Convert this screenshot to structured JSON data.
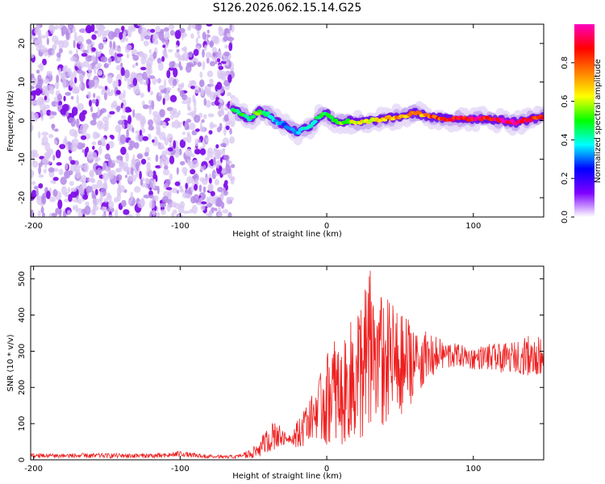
{
  "title": "S126.2026.062.15.14.G25",
  "chart_data": [
    {
      "type": "heatmap",
      "xlabel": "Height of straight line (km)",
      "ylabel": "Frequency (Hz)",
      "xlim": [
        -202,
        148
      ],
      "ylim": [
        -25,
        25
      ],
      "xticks": [
        -200,
        -100,
        0,
        100
      ],
      "yticks": [
        -20,
        -10,
        0,
        10,
        20
      ],
      "noise_region_x": [
        -202,
        -64
      ],
      "ridge": {
        "x": [
          -64,
          -58,
          -52,
          -46,
          -40,
          -35,
          -30,
          -25,
          -20,
          -15,
          -10,
          -5,
          0,
          5,
          10,
          15,
          20,
          30,
          40,
          50,
          60,
          70,
          80,
          90,
          100,
          110,
          120,
          130,
          140,
          148
        ],
        "freq": [
          3,
          1.5,
          0.5,
          2.5,
          1.5,
          0,
          -1,
          -2,
          -3,
          -2,
          -1,
          1,
          2,
          0,
          -0.5,
          0,
          -0.5,
          0,
          0.5,
          1,
          2,
          1,
          0.5,
          0.5,
          0.5,
          0.5,
          0,
          -0.5,
          0.5,
          1
        ],
        "amp": [
          0.45,
          0.5,
          0.45,
          0.55,
          0.4,
          0.35,
          0.3,
          0.3,
          0.35,
          0.4,
          0.45,
          0.45,
          0.5,
          0.5,
          0.55,
          0.6,
          0.6,
          0.65,
          0.7,
          0.75,
          0.75,
          0.8,
          0.85,
          0.9,
          0.9,
          0.92,
          0.95,
          0.95,
          0.9,
          0.85
        ]
      },
      "colorbar": {
        "label": "Normalized spectral amplitude",
        "range": [
          0,
          1
        ],
        "ticks": [
          0.0,
          0.2,
          0.4,
          0.6,
          0.8
        ],
        "tick_labels": [
          "0.0",
          "0.2",
          "0.4",
          "0.6",
          "0.8"
        ],
        "colors": [
          "#ffffff",
          "#7f00ff",
          "#0000ff",
          "#00ffff",
          "#00ff00",
          "#ffff00",
          "#ff7f00",
          "#ff0000",
          "#ff00bf"
        ]
      }
    },
    {
      "type": "line",
      "xlabel": "Height of straight line (km)",
      "ylabel": "SNR (10 * v/v)",
      "xlim": [
        -202,
        148
      ],
      "ylim": [
        0,
        535
      ],
      "xticks": [
        -200,
        -100,
        0,
        100
      ],
      "yticks": [
        0,
        100,
        200,
        300,
        400,
        500
      ],
      "color": "#ee2020",
      "envelope": {
        "x": [
          -202,
          -150,
          -110,
          -100,
          -90,
          -70,
          -60,
          -50,
          -45,
          -40,
          -35,
          -30,
          -25,
          -20,
          -15,
          -10,
          -5,
          0,
          5,
          10,
          15,
          20,
          25,
          30,
          35,
          40,
          45,
          50,
          55,
          60,
          65,
          70,
          75,
          80,
          90,
          100,
          110,
          120,
          130,
          140,
          148
        ],
        "lower": [
          5,
          5,
          5,
          10,
          5,
          3,
          3,
          5,
          10,
          20,
          30,
          40,
          50,
          30,
          40,
          60,
          60,
          40,
          60,
          40,
          60,
          60,
          60,
          80,
          80,
          100,
          120,
          120,
          150,
          160,
          200,
          220,
          240,
          250,
          260,
          250,
          250,
          240,
          240,
          230,
          240
        ],
        "upper": [
          18,
          18,
          18,
          25,
          18,
          12,
          15,
          35,
          60,
          90,
          120,
          80,
          70,
          110,
          160,
          180,
          230,
          300,
          340,
          300,
          370,
          420,
          470,
          535,
          470,
          450,
          440,
          400,
          400,
          380,
          360,
          350,
          340,
          330,
          320,
          310,
          320,
          320,
          330,
          350,
          340
        ]
      }
    }
  ]
}
